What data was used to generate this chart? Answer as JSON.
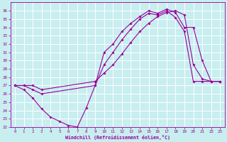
{
  "xlabel": "Windchill (Refroidissement éolien,°C)",
  "bg_color": "#c8eef0",
  "grid_color": "#ffffff",
  "line_color": "#990099",
  "xlim": [
    -0.5,
    23.5
  ],
  "ylim": [
    22,
    37
  ],
  "xticks": [
    0,
    1,
    2,
    3,
    4,
    5,
    6,
    7,
    8,
    9,
    10,
    11,
    12,
    13,
    14,
    15,
    16,
    17,
    18,
    19,
    20,
    21,
    22,
    23
  ],
  "yticks": [
    22,
    23,
    24,
    25,
    26,
    27,
    28,
    29,
    30,
    31,
    32,
    33,
    34,
    35,
    36
  ],
  "line1_x": [
    0,
    1,
    2,
    3,
    4,
    5,
    6,
    7,
    8,
    9,
    10,
    11,
    12,
    13,
    14,
    15,
    16,
    17,
    18,
    19,
    20,
    21,
    22,
    23
  ],
  "line1_y": [
    27.0,
    26.5,
    25.5,
    24.2,
    23.2,
    22.7,
    22.2,
    22.0,
    24.3,
    27.0,
    29.5,
    31.0,
    32.5,
    33.8,
    35.0,
    35.7,
    35.5,
    36.0,
    35.2,
    33.5,
    27.5,
    27.5,
    27.5,
    27.5
  ],
  "line2_x": [
    0,
    1,
    2,
    3,
    9,
    10,
    11,
    12,
    13,
    14,
    15,
    16,
    17,
    18,
    19,
    20,
    21,
    22,
    23
  ],
  "line2_y": [
    27.0,
    27.0,
    26.5,
    26.0,
    27.0,
    31.0,
    32.0,
    33.5,
    34.5,
    35.3,
    36.0,
    35.7,
    36.2,
    35.8,
    34.0,
    34.0,
    30.0,
    27.5,
    27.5
  ],
  "line3_x": [
    0,
    1,
    2,
    3,
    9,
    10,
    11,
    12,
    13,
    14,
    15,
    16,
    17,
    18,
    19,
    20,
    21,
    22,
    23
  ],
  "line3_y": [
    27.0,
    27.0,
    27.0,
    26.5,
    27.5,
    28.5,
    29.5,
    30.8,
    32.2,
    33.5,
    34.5,
    35.3,
    35.8,
    36.0,
    35.5,
    29.5,
    27.8,
    27.5,
    27.5
  ]
}
